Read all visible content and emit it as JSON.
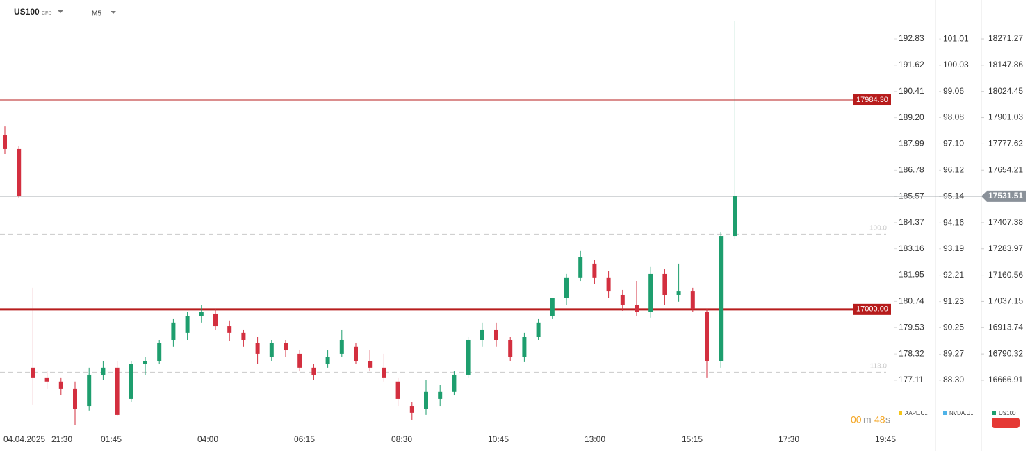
{
  "header": {
    "symbol": "US100",
    "instrument_type": "CFD",
    "timeframe": "M5"
  },
  "chart_data": {
    "type": "candlestick",
    "x_labels": [
      "04.04.2025",
      "21:30",
      "01:45",
      "04:00",
      "06:15",
      "08:30",
      "10:45",
      "13:00",
      "15:15",
      "17:30",
      "19:45"
    ],
    "series": [
      {
        "name": "US100",
        "color_up": "#1e9e6e",
        "color_down": "#d32f3f",
        "open": [
          17818,
          17753,
          16726,
          16677,
          16661,
          16628,
          16546,
          16693,
          16726,
          16579,
          16742,
          16758,
          16856,
          16889,
          16970,
          16980,
          16921,
          16889,
          16840,
          16775,
          16840,
          16791,
          16726,
          16742,
          16791,
          16824,
          16758,
          16726,
          16661,
          16546,
          16530,
          16579,
          16612,
          16693,
          16856,
          16905,
          16856,
          16775,
          16872,
          16970,
          17052,
          17150,
          17215,
          17150,
          17068,
          17019,
          16987,
          17166,
          17068,
          17084,
          16987,
          16758,
          17345
        ],
        "high": [
          17860,
          17769,
          17101,
          16709,
          16677,
          16661,
          16726,
          16758,
          16758,
          16758,
          16775,
          16856,
          16954,
          16987,
          17019,
          17003,
          16948,
          16905,
          16872,
          16856,
          16856,
          16807,
          16742,
          16807,
          16905,
          16840,
          16807,
          16791,
          16677,
          16563,
          16667,
          16644,
          16709,
          16872,
          16938,
          16938,
          16872,
          16889,
          16954,
          17052,
          17166,
          17274,
          17231,
          17182,
          17091,
          17133,
          17199,
          17189,
          17215,
          17101,
          17003,
          17362,
          18356
        ],
        "low": [
          17730,
          17525,
          16553,
          16628,
          16595,
          16458,
          16524,
          16667,
          16497,
          16563,
          16693,
          16742,
          16824,
          16856,
          16938,
          16905,
          16850,
          16824,
          16742,
          16758,
          16775,
          16709,
          16667,
          16726,
          16775,
          16742,
          16709,
          16661,
          16546,
          16481,
          16504,
          16546,
          16595,
          16677,
          16824,
          16824,
          16758,
          16752,
          16856,
          16954,
          17019,
          17133,
          17117,
          17052,
          16993,
          16970,
          16961,
          17019,
          17036,
          16987,
          16677,
          16726,
          17329
        ],
        "close": [
          17753,
          17531,
          16677,
          16661,
          16628,
          16530,
          16693,
          16726,
          16504,
          16742,
          16758,
          16840,
          16938,
          16970,
          16987,
          16921,
          16889,
          16856,
          16791,
          16840,
          16807,
          16726,
          16693,
          16775,
          16856,
          16758,
          16726,
          16677,
          16579,
          16514,
          16612,
          16612,
          16693,
          16856,
          16905,
          16856,
          16775,
          16872,
          16938,
          17052,
          17150,
          17247,
          17150,
          17084,
          17019,
          16987,
          17166,
          17068,
          17084,
          17003,
          16758,
          17345,
          17531
        ]
      }
    ],
    "ylim": [
      16432,
      18454
    ],
    "yticks": [
      18271.27,
      18147.86,
      18024.45,
      17901.03,
      17777.62,
      17654.21,
      17407.38,
      17283.97,
      17160.56,
      17037.15,
      16913.74,
      16790.32,
      16666.91
    ],
    "y_axes_extra": [
      {
        "ylim": [
          174.81,
          194.62
        ],
        "yticks": [
          192.83,
          191.62,
          190.41,
          {
            "value": 189.2,
            "label": "189.20"
          },
          187.99,
          186.78,
          185.57,
          184.37,
          183.16,
          181.95,
          180.74,
          179.53,
          178.32,
          177.11
        ]
      },
      {
        "ylim": [
          86.44,
          102.46
        ],
        "yticks": [
          101.01,
          100.03,
          99.06,
          98.08,
          {
            "value": 97.1,
            "label": "97.10"
          },
          96.12,
          95.14,
          94.16,
          93.19,
          92.21,
          91.23,
          90.25,
          89.27,
          {
            "value": 88.3,
            "label": "88.30"
          }
        ]
      }
    ],
    "price_lines": [
      {
        "value": 17984.3,
        "label": "17984.30",
        "color": "#b71c1c"
      },
      {
        "value": 17000,
        "label": "17000.00",
        "color": "#b71c1c"
      }
    ],
    "current_price": 17531.51,
    "levels": [
      {
        "label": "100.0",
        "value": 17352
      },
      {
        "label": "113.0",
        "value": 16703
      }
    ],
    "legend": [
      {
        "name": "AAPL.U..",
        "color": "#f5c518"
      },
      {
        "name": "NVDA.U..",
        "color": "#4fb3e8"
      },
      {
        "name": "US100",
        "color": "#1e9e6e"
      }
    ]
  },
  "countdown": {
    "minutes": "00",
    "minutes_unit": "m",
    "seconds": "48",
    "seconds_unit": "s"
  }
}
